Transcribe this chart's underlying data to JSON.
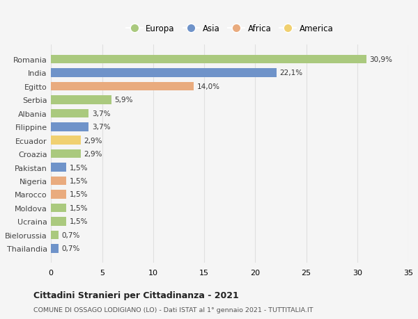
{
  "countries": [
    "Romania",
    "India",
    "Egitto",
    "Serbia",
    "Albania",
    "Filippine",
    "Ecuador",
    "Croazia",
    "Pakistan",
    "Nigeria",
    "Marocco",
    "Moldova",
    "Ucraina",
    "Bielorussia",
    "Thailandia"
  ],
  "values": [
    30.9,
    22.1,
    14.0,
    5.9,
    3.7,
    3.7,
    2.9,
    2.9,
    1.5,
    1.5,
    1.5,
    1.5,
    1.5,
    0.7,
    0.7
  ],
  "labels": [
    "30,9%",
    "22,1%",
    "14,0%",
    "5,9%",
    "3,7%",
    "3,7%",
    "2,9%",
    "2,9%",
    "1,5%",
    "1,5%",
    "1,5%",
    "1,5%",
    "1,5%",
    "0,7%",
    "0,7%"
  ],
  "continents": [
    "Europa",
    "Asia",
    "Africa",
    "Europa",
    "Europa",
    "Asia",
    "America",
    "Europa",
    "Asia",
    "Africa",
    "Africa",
    "Europa",
    "Europa",
    "Europa",
    "Asia"
  ],
  "colors": {
    "Europa": "#aac97e",
    "Asia": "#6f93c9",
    "Africa": "#e9ab7e",
    "America": "#f0d070"
  },
  "legend_order": [
    "Europa",
    "Asia",
    "Africa",
    "America"
  ],
  "title": "Cittadini Stranieri per Cittadinanza - 2021",
  "subtitle": "COMUNE DI OSSAGO LODIGIANO (LO) - Dati ISTAT al 1° gennaio 2021 - TUTTITALIA.IT",
  "xlim": [
    0,
    35
  ],
  "xticks": [
    0,
    5,
    10,
    15,
    20,
    25,
    30,
    35
  ],
  "background_color": "#f5f5f5",
  "grid_color": "#e0e0e0",
  "bar_height": 0.65,
  "figsize": [
    6.0,
    4.6
  ],
  "dpi": 100
}
